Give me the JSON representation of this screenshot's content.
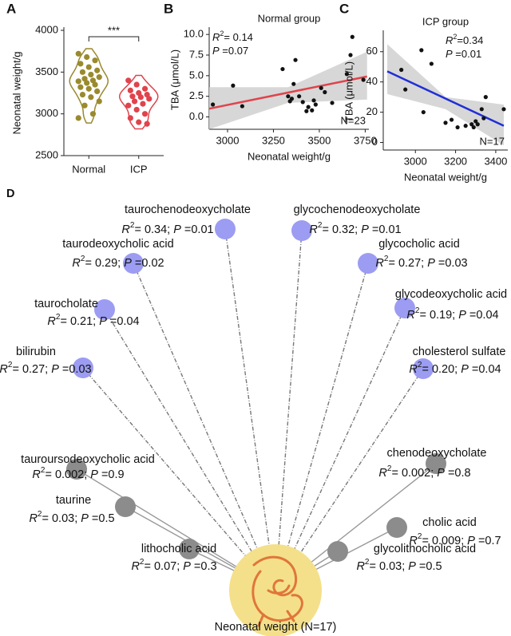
{
  "chart_data": [
    {
      "type": "violin",
      "panel": "A",
      "ylabel": "Neonatal weight/g",
      "annotation": "***",
      "categories": [
        "Normal",
        "ICP"
      ],
      "colors": [
        "#9a8a2e",
        "#e0434b"
      ],
      "values": [
        [
          3720,
          3680,
          3640,
          3600,
          3560,
          3520,
          3500,
          3470,
          3440,
          3420,
          3400,
          3390,
          3370,
          3350,
          3320,
          3300,
          3270,
          3230,
          3200,
          3150,
          3100,
          3000,
          2950
        ],
        [
          3400,
          3350,
          3300,
          3280,
          3250,
          3230,
          3210,
          3200,
          3180,
          3150,
          3120,
          3100,
          3050,
          3000,
          2950,
          2900,
          2880
        ]
      ],
      "ylim": [
        2500,
        4000
      ],
      "yticks": [
        2500,
        3000,
        3500,
        4000
      ]
    },
    {
      "type": "scatter",
      "panel": "B",
      "title": "Normal group",
      "xlabel": "Neonatal weight/g",
      "ylabel": "TBA (μmol/L)",
      "stats": {
        "r": "R",
        "sup": "2",
        "r2": "= 0.14",
        "p": "P",
        "pv": " =0.07"
      },
      "n_label": "N=23",
      "x": [
        2920,
        3030,
        3080,
        3300,
        3330,
        3340,
        3350,
        3360,
        3370,
        3390,
        3410,
        3430,
        3440,
        3460,
        3470,
        3480,
        3510,
        3530,
        3570,
        3650,
        3680,
        3670,
        3740
      ],
      "y": [
        1.5,
        3.8,
        1.3,
        5.8,
        2.5,
        1.9,
        2.2,
        4.0,
        6.9,
        2.5,
        1.8,
        0.7,
        1.2,
        0.8,
        2.0,
        1.5,
        3.5,
        3.0,
        1.7,
        5.2,
        9.7,
        7.5,
        4.5
      ],
      "color": "#111111",
      "fit": {
        "x": [
          2900,
          3760
        ],
        "y": [
          1.0,
          4.9
        ],
        "color": "#e0434b"
      },
      "ci": {
        "x": [
          2900,
          3330,
          3760
        ],
        "lower": [
          -1.5,
          1.7,
          2.1
        ],
        "upper": [
          3.6,
          3.6,
          7.9
        ]
      },
      "xlim": [
        2900,
        3770
      ],
      "xticks": [
        3000,
        3250,
        3500,
        3750
      ],
      "ylim": [
        -1.5,
        10.5
      ],
      "yticks": [
        {
          "value": 0,
          "label": "0.0"
        },
        {
          "value": 2.5,
          "label": "2.5"
        },
        {
          "value": 5,
          "label": "5.0"
        },
        {
          "value": 7.5,
          "label": "7.5"
        },
        {
          "value": 10,
          "label": "10.0"
        }
      ]
    },
    {
      "type": "scatter",
      "panel": "C",
      "title": "ICP group",
      "xlabel": "Neonatal weight/g",
      "ylabel": "TBA (μmol/L)",
      "stats": {
        "r": "R",
        "sup": "2",
        "r2": "=0.34",
        "p": "P",
        "pv": " =0.01"
      },
      "n_label": "N=17",
      "x": [
        2930,
        2950,
        3030,
        3040,
        3080,
        3150,
        3180,
        3210,
        3250,
        3280,
        3290,
        3300,
        3310,
        3330,
        3340,
        3350,
        3440
      ],
      "y": [
        48,
        35,
        61,
        20,
        52,
        13,
        15,
        10,
        11,
        12,
        10,
        14,
        12,
        22,
        16,
        30,
        22
      ],
      "color": "#111111",
      "fit": {
        "x": [
          2860,
          3440
        ],
        "y": [
          47,
          11
        ],
        "color": "#1f2fd6"
      },
      "ci": {
        "x": [
          2860,
          3150,
          3440
        ],
        "lower": [
          32,
          22,
          -2
        ],
        "upper": [
          65,
          30,
          25
        ]
      },
      "xlim": [
        2840,
        3460
      ],
      "xticks": [
        3000,
        3200,
        3400
      ],
      "ylim": [
        -5,
        72
      ],
      "yticks": [
        0,
        20,
        40,
        60
      ]
    }
  ],
  "network": {
    "panel": "D",
    "center": "Neonatal weight (N=17)",
    "format": {
      "r": "R",
      "sup": "2",
      "p": "P"
    },
    "nodes": [
      {
        "name": "taurochenodeoxycholate",
        "r2": "= 0.34;",
        "p": " =0.01",
        "color": "#9b9cf2"
      },
      {
        "name": "glycochenodeoxycholate",
        "r2": "= 0.32;",
        "p": " =0.01",
        "color": "#9b9cf2"
      },
      {
        "name": "taurodeoxycholic acid",
        "r2": "= 0.29;",
        "p": " =0.02",
        "color": "#9b9cf2"
      },
      {
        "name": "glycocholic acid",
        "r2": "= 0.27;",
        "p": " =0.03",
        "color": "#9b9cf2"
      },
      {
        "name": "taurocholate",
        "r2": "= 0.21;",
        "p": " =0.04",
        "color": "#9b9cf2"
      },
      {
        "name": "glycodeoxycholic acid",
        "r2": "= 0.19;",
        "p": " =0.04",
        "color": "#9b9cf2"
      },
      {
        "name": "bilirubin",
        "r2": "= 0.27;",
        "p": " =0.03",
        "color": "#9b9cf2"
      },
      {
        "name": "cholesterol sulfate",
        "r2": "= 0.20;",
        "p": " =0.04",
        "color": "#9b9cf2"
      },
      {
        "name": "tauroursodeoxycholic acid",
        "r2": "= 0.002;",
        "p": " =0.9",
        "color": "#8c8c8c"
      },
      {
        "name": "chenodeoxycholate",
        "r2": "= 0.002;",
        "p": " =0.8",
        "color": "#8c8c8c"
      },
      {
        "name": "taurine",
        "r2": "= 0.03;",
        "p": " =0.5",
        "color": "#8c8c8c"
      },
      {
        "name": "cholic acid",
        "r2": "= 0.009;",
        "p": " =0.7",
        "color": "#8c8c8c"
      },
      {
        "name": "lithocholic acid",
        "r2": "= 0.07;",
        "p": " =0.3",
        "color": "#8c8c8c"
      },
      {
        "name": "glycolithocholic acid",
        "r2": "= 0.03;",
        "p": " =0.5",
        "color": "#8c8c8c"
      }
    ]
  }
}
